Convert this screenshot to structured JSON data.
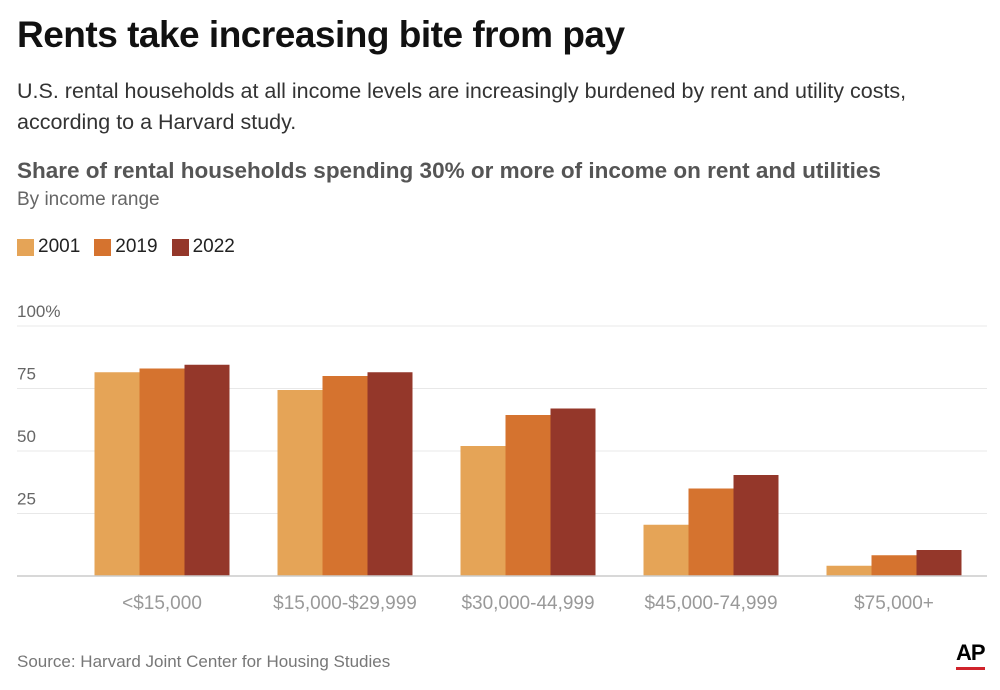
{
  "chart_data": {
    "type": "bar",
    "title": "Rents take increasing bite from pay",
    "subtitle": "U.S. rental households at all income levels are increasingly burdened by rent and utility costs, according to a Harvard study.",
    "chart_title": "Share of rental households spending 30% or more of income on rent and utilities",
    "chart_subtitle": "By income range",
    "categories": [
      "<$15,000",
      "$15,000-$29,999",
      "$30,000-44,999",
      "$45,000-74,999",
      "$75,000+"
    ],
    "series": [
      {
        "name": "2001",
        "color": "#e5a457",
        "values": [
          81.5,
          74.4,
          52,
          20.5,
          4.1
        ]
      },
      {
        "name": "2019",
        "color": "#d5732f",
        "values": [
          83,
          80,
          64.4,
          35,
          8.3
        ]
      },
      {
        "name": "2022",
        "color": "#94372a",
        "values": [
          84.5,
          81.5,
          67,
          40.4,
          10.4
        ]
      }
    ],
    "yticks": [
      "25",
      "50",
      "75",
      "100%"
    ],
    "ytick_values": [
      25,
      50,
      75,
      100
    ],
    "ylim": [
      0,
      100
    ],
    "grid": true,
    "legend": "top-left",
    "source": "Source: Harvard Joint Center for Housing Studies",
    "logo": "AP"
  }
}
